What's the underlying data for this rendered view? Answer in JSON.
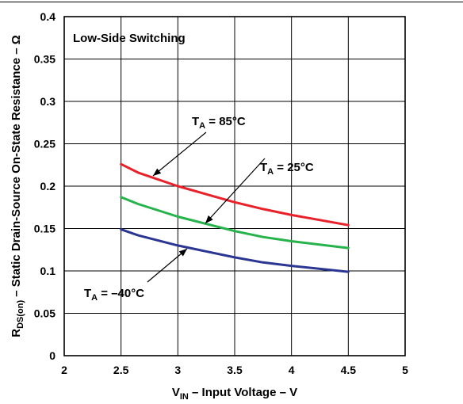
{
  "chart_data": {
    "type": "line",
    "title": "Low-Side Switching",
    "xlabel": {
      "main": "V",
      "sub": "IN",
      "rest": " – Input Voltage – V"
    },
    "ylabel": {
      "main": "R",
      "sub": "DS(on)",
      "rest": " – Static Drain-Source On-State Resistance – Ω"
    },
    "xlim": [
      2,
      5
    ],
    "ylim": [
      0,
      0.4
    ],
    "x_ticks": [
      "2",
      "2.5",
      "3",
      "3.5",
      "4",
      "4.5",
      "5"
    ],
    "y_ticks": [
      "0",
      "0.05",
      "0.1",
      "0.15",
      "0.2",
      "0.25",
      "0.3",
      "0.35",
      "0.4"
    ],
    "grid": true,
    "series": [
      {
        "name": "T_A = 85°C",
        "label_main": "T",
        "label_sub": "A",
        "label_rest": " = 85°C",
        "color": "#e8212b",
        "x": [
          2.5,
          2.65,
          3.0,
          3.5,
          3.75,
          4.0,
          4.5
        ],
        "y": [
          0.226,
          0.216,
          0.2,
          0.181,
          0.173,
          0.166,
          0.154
        ]
      },
      {
        "name": "T_A = 25°C",
        "label_main": "T",
        "label_sub": "A",
        "label_rest": " = 25°C",
        "color": "#27b34b",
        "x": [
          2.5,
          2.65,
          3.0,
          3.5,
          3.75,
          4.0,
          4.5
        ],
        "y": [
          0.187,
          0.179,
          0.164,
          0.147,
          0.14,
          0.135,
          0.127
        ]
      },
      {
        "name": "T_A = –40°C",
        "label_main": "T",
        "label_sub": "A",
        "label_rest": " = –40°C",
        "color": "#2b3693",
        "x": [
          2.5,
          2.65,
          3.0,
          3.5,
          3.75,
          4.0,
          4.5
        ],
        "y": [
          0.149,
          0.142,
          0.13,
          0.116,
          0.11,
          0.106,
          0.099
        ]
      }
    ]
  }
}
